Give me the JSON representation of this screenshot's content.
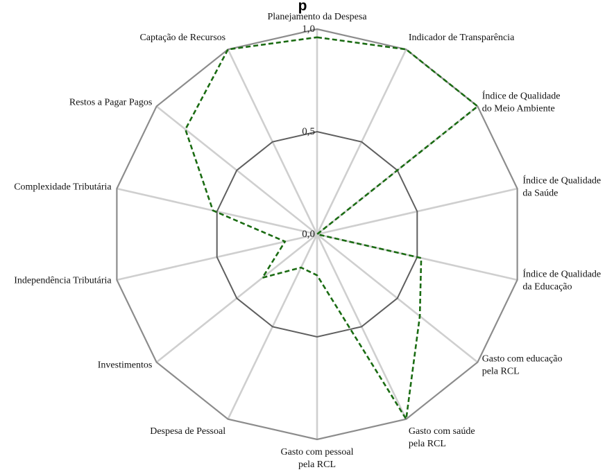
{
  "chart_data": {
    "type": "radar",
    "title": "p",
    "categories": [
      "Planejamento da Despesa",
      "Indicador de Transparência",
      "Índice de Qualidade do Meio Ambiente",
      "Índice de Qualidade da Saúde",
      "Índice de Qualidade da Educação",
      "Gasto com educação pela RCL",
      "Gasto com saúde pela RCL",
      "Gasto com pessoal pela RCL",
      "Despesa de Pessoal",
      "Investimentos",
      "Independência Tributária",
      "Complexidade Tributária",
      "Restos a Pagar Pagos",
      "Captação de Recursos"
    ],
    "category_lines": [
      [
        "Planejamento da Despesa"
      ],
      [
        "Indicador de Transparência"
      ],
      [
        "Índice de Qualidade",
        "do Meio Ambiente"
      ],
      [
        "Índice de Qualidade",
        "da Saúde"
      ],
      [
        "Índice de Qualidade",
        "da Educação"
      ],
      [
        "Gasto com educação",
        "pela RCL"
      ],
      [
        "Gasto com saúde",
        "pela RCL"
      ],
      [
        "Gasto com pessoal",
        "pela RCL"
      ],
      [
        "Despesa de Pessoal"
      ],
      [
        "Investimentos"
      ],
      [
        "Independência Tributária"
      ],
      [
        "Complexidade Tributária"
      ],
      [
        "Restos a Pagar Pagos"
      ],
      [
        "Captação de Recursos"
      ]
    ],
    "series": [
      {
        "values": [
          0.96,
          1.0,
          1.0,
          0.0,
          0.52,
          0.64,
          1.0,
          0.2,
          0.18,
          0.34,
          0.16,
          0.52,
          0.82,
          1.0
        ]
      }
    ],
    "ring_values": [
      0.0,
      0.5,
      1.0
    ],
    "ring_labels": [
      "0,0",
      "0,5",
      "1,0"
    ],
    "rlim": [
      0,
      1
    ],
    "grid": true,
    "legend": "none",
    "colors": {
      "series": "#1a6b12",
      "outer_ring": "#8c8c8c",
      "mid_ring": "#5f5f5f",
      "spokes": "#cfcfcf"
    }
  }
}
